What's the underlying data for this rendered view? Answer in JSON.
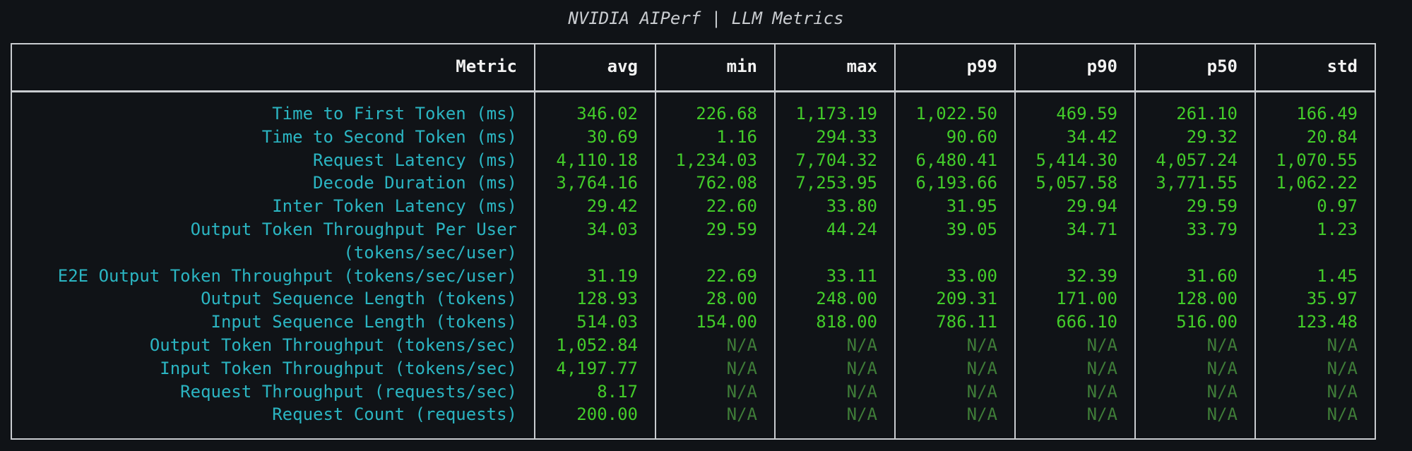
{
  "title": "NVIDIA AIPerf | LLM Metrics",
  "table": {
    "headers": [
      "Metric",
      "avg",
      "min",
      "max",
      "p99",
      "p90",
      "p50",
      "std"
    ],
    "rows": [
      [
        "Time to First Token (ms)",
        "346.02",
        "226.68",
        "1,173.19",
        "1,022.50",
        "469.59",
        "261.10",
        "166.49"
      ],
      [
        "Time to Second Token (ms)",
        "30.69",
        "1.16",
        "294.33",
        "90.60",
        "34.42",
        "29.32",
        "20.84"
      ],
      [
        "Request Latency (ms)",
        "4,110.18",
        "1,234.03",
        "7,704.32",
        "6,480.41",
        "5,414.30",
        "4,057.24",
        "1,070.55"
      ],
      [
        "Decode Duration (ms)",
        "3,764.16",
        "762.08",
        "7,253.95",
        "6,193.66",
        "5,057.58",
        "3,771.55",
        "1,062.22"
      ],
      [
        "Inter Token Latency (ms)",
        "29.42",
        "22.60",
        "33.80",
        "31.95",
        "29.94",
        "29.59",
        "0.97"
      ],
      [
        "Output Token Throughput Per User\n(tokens/sec/user)",
        "34.03",
        "29.59",
        "44.24",
        "39.05",
        "34.71",
        "33.79",
        "1.23"
      ],
      [
        "E2E Output Token Throughput (tokens/sec/user)",
        "31.19",
        "22.69",
        "33.11",
        "33.00",
        "32.39",
        "31.60",
        "1.45"
      ],
      [
        "Output Sequence Length (tokens)",
        "128.93",
        "28.00",
        "248.00",
        "209.31",
        "171.00",
        "128.00",
        "35.97"
      ],
      [
        "Input Sequence Length (tokens)",
        "514.03",
        "154.00",
        "818.00",
        "786.11",
        "666.10",
        "516.00",
        "123.48"
      ],
      [
        "Output Token Throughput (tokens/sec)",
        "1,052.84",
        "N/A",
        "N/A",
        "N/A",
        "N/A",
        "N/A",
        "N/A"
      ],
      [
        "Input Token Throughput (tokens/sec)",
        "4,197.77",
        "N/A",
        "N/A",
        "N/A",
        "N/A",
        "N/A",
        "N/A"
      ],
      [
        "Request Throughput (requests/sec)",
        "8.17",
        "N/A",
        "N/A",
        "N/A",
        "N/A",
        "N/A",
        "N/A"
      ],
      [
        "Request Count (requests)",
        "200.00",
        "N/A",
        "N/A",
        "N/A",
        "N/A",
        "N/A",
        "N/A"
      ]
    ]
  }
}
